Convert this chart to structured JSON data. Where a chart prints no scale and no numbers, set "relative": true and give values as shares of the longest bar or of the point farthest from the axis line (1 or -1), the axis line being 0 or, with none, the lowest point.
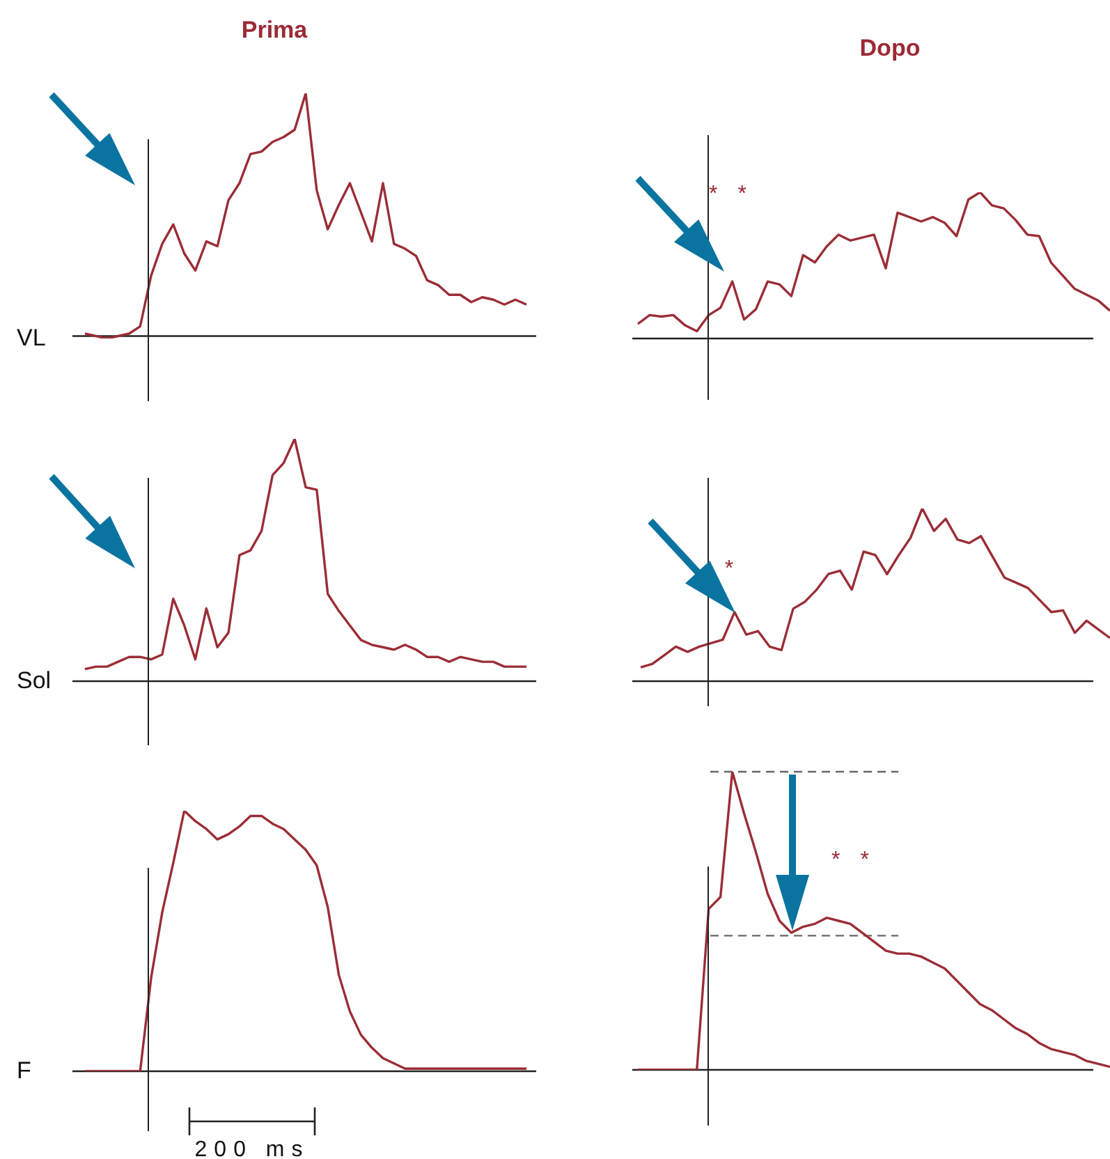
{
  "chart_data": [
    {
      "type": "line",
      "title": "Prima",
      "ylabel": "VL",
      "relative": true,
      "marker": "none",
      "color": "#9b2d36",
      "categories": [
        null,
        null,
        null,
        null,
        null,
        null,
        null,
        null,
        null,
        null,
        null,
        null,
        null,
        null,
        null,
        null,
        null,
        null,
        null,
        null,
        null,
        null,
        null,
        null,
        null,
        null,
        null,
        null,
        null,
        null,
        null,
        null,
        null,
        null,
        null,
        null,
        null,
        null,
        null,
        null,
        null
      ],
      "values": [
        0.01,
        0.0,
        -0.01,
        0.0,
        0.01,
        0.04,
        0.25,
        0.38,
        0.46,
        0.34,
        0.27,
        0.39,
        0.37,
        0.56,
        0.63,
        0.75,
        0.76,
        0.8,
        0.82,
        0.85,
        1.0,
        0.6,
        0.44,
        0.54,
        0.63,
        0.51,
        0.39,
        0.63,
        0.38,
        0.36,
        0.33,
        0.23,
        0.21,
        0.17,
        0.17,
        0.14,
        0.16,
        0.15,
        0.13,
        0.15,
        0.13
      ]
    },
    {
      "type": "line",
      "title": "Dopo",
      "relative": true,
      "marker": "none",
      "color": "#9b2d36",
      "annotations": [
        "* *"
      ],
      "categories": [
        null,
        null,
        null,
        null,
        null,
        null,
        null,
        null,
        null,
        null,
        null,
        null,
        null,
        null,
        null,
        null,
        null,
        null,
        null,
        null,
        null,
        null,
        null,
        null,
        null,
        null,
        null,
        null,
        null,
        null,
        null,
        null,
        null,
        null,
        null,
        null,
        null,
        null,
        null,
        null,
        null
      ],
      "values": [
        0.1,
        0.16,
        0.15,
        0.16,
        0.09,
        0.05,
        0.16,
        0.21,
        0.39,
        0.13,
        0.2,
        0.39,
        0.37,
        0.29,
        0.57,
        0.52,
        0.63,
        0.71,
        0.67,
        0.69,
        0.71,
        0.48,
        0.86,
        0.83,
        0.8,
        0.83,
        0.79,
        0.7,
        0.95,
        1.0,
        0.91,
        0.89,
        0.81,
        0.71,
        0.7,
        0.52,
        0.43,
        0.34,
        0.3,
        0.26,
        0.19
      ]
    },
    {
      "type": "line",
      "ylabel": "Sol",
      "relative": true,
      "marker": "none",
      "color": "#9b2d36",
      "categories": [
        null,
        null,
        null,
        null,
        null,
        null,
        null,
        null,
        null,
        null,
        null,
        null,
        null,
        null,
        null,
        null,
        null,
        null,
        null,
        null,
        null,
        null,
        null,
        null,
        null,
        null,
        null,
        null,
        null,
        null,
        null,
        null,
        null,
        null,
        null,
        null,
        null,
        null,
        null,
        null,
        null
      ],
      "values": [
        0.05,
        0.06,
        0.06,
        0.08,
        0.1,
        0.1,
        0.09,
        0.11,
        0.34,
        0.23,
        0.09,
        0.3,
        0.14,
        0.2,
        0.52,
        0.54,
        0.62,
        0.85,
        0.9,
        1.0,
        0.8,
        0.79,
        0.36,
        0.29,
        0.23,
        0.17,
        0.15,
        0.14,
        0.13,
        0.15,
        0.13,
        0.1,
        0.1,
        0.08,
        0.1,
        0.09,
        0.08,
        0.08,
        0.06,
        0.06,
        0.06
      ]
    },
    {
      "type": "line",
      "relative": true,
      "marker": "none",
      "color": "#9b2d36",
      "annotations": [
        "*"
      ],
      "categories": [
        null,
        null,
        null,
        null,
        null,
        null,
        null,
        null,
        null,
        null,
        null,
        null,
        null,
        null,
        null,
        null,
        null,
        null,
        null,
        null,
        null,
        null,
        null,
        null,
        null,
        null,
        null,
        null,
        null,
        null,
        null,
        null,
        null,
        null,
        null,
        null,
        null,
        null,
        null,
        null,
        null
      ],
      "values": [
        0.08,
        0.1,
        0.15,
        0.2,
        0.17,
        0.2,
        0.22,
        0.24,
        0.4,
        0.27,
        0.29,
        0.2,
        0.18,
        0.42,
        0.46,
        0.53,
        0.62,
        0.64,
        0.53,
        0.75,
        0.73,
        0.62,
        0.73,
        0.83,
        1.0,
        0.87,
        0.94,
        0.82,
        0.8,
        0.84,
        0.72,
        0.6,
        0.57,
        0.54,
        0.47,
        0.4,
        0.41,
        0.28,
        0.35,
        0.3,
        0.25
      ]
    },
    {
      "type": "line",
      "ylabel": "F",
      "relative": true,
      "marker": "none",
      "color": "#9b2d36",
      "annotations": [
        "200 ms"
      ],
      "categories": [
        null,
        null,
        null,
        null,
        null,
        null,
        null,
        null,
        null,
        null,
        null,
        null,
        null,
        null,
        null,
        null,
        null,
        null,
        null,
        null,
        null,
        null,
        null,
        null,
        null,
        null,
        null,
        null,
        null,
        null,
        null,
        null,
        null,
        null,
        null,
        null,
        null,
        null,
        null,
        null,
        null
      ],
      "values": [
        0,
        0,
        0,
        0,
        0,
        0,
        0.36,
        0.61,
        0.8,
        1.0,
        0.96,
        0.93,
        0.89,
        0.91,
        0.94,
        0.98,
        0.98,
        0.95,
        0.93,
        0.89,
        0.85,
        0.79,
        0.63,
        0.37,
        0.23,
        0.14,
        0.09,
        0.05,
        0.03,
        0.01,
        0.01,
        0.01,
        0.01,
        0.01,
        0.01,
        0.01,
        0.01,
        0.01,
        0.01,
        0.01,
        0.01
      ]
    },
    {
      "type": "line",
      "relative": true,
      "marker": "none",
      "color": "#9b2d36",
      "annotations": [
        "* *"
      ],
      "categories": [
        null,
        null,
        null,
        null,
        null,
        null,
        null,
        null,
        null,
        null,
        null,
        null,
        null,
        null,
        null,
        null,
        null,
        null,
        null,
        null,
        null,
        null,
        null,
        null,
        null,
        null,
        null,
        null,
        null,
        null,
        null,
        null,
        null,
        null,
        null,
        null,
        null,
        null,
        null,
        null,
        null
      ],
      "values": [
        0,
        0,
        0,
        0,
        0,
        0,
        0.54,
        0.58,
        1.0,
        0.86,
        0.73,
        0.59,
        0.5,
        0.46,
        0.48,
        0.49,
        0.51,
        0.5,
        0.49,
        0.46,
        0.43,
        0.4,
        0.39,
        0.39,
        0.38,
        0.36,
        0.34,
        0.3,
        0.26,
        0.22,
        0.2,
        0.17,
        0.14,
        0.12,
        0.09,
        0.07,
        0.06,
        0.05,
        0.03,
        0.02,
        0.01
      ],
      "ref_lines": [
        {
          "axis": "y",
          "value": 1.0,
          "line_style": "dashed",
          "color": "#666666"
        },
        {
          "axis": "y",
          "value": 0.45,
          "line_style": "dashed",
          "color": "#666666"
        }
      ]
    }
  ]
}
